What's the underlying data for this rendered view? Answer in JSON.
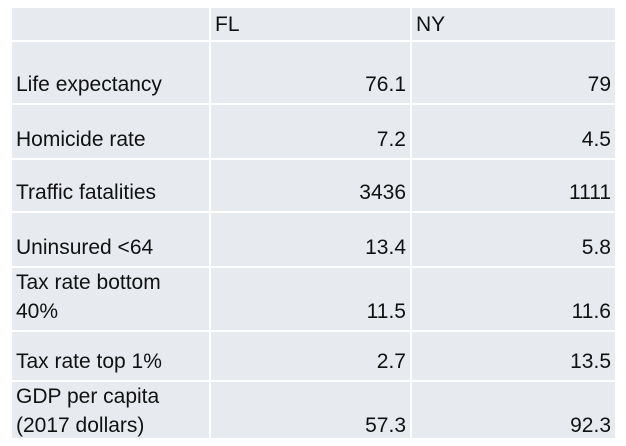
{
  "table": {
    "headers": [
      "",
      "FL",
      "NY"
    ],
    "rows": [
      {
        "label": "Life expectancy",
        "fl": "76.1",
        "ny": "79"
      },
      {
        "label": "Homicide rate",
        "fl": "7.2",
        "ny": "4.5"
      },
      {
        "label": "Traffic fatalities",
        "fl": "3436",
        "ny": "1111"
      },
      {
        "label": "Uninsured <64",
        "fl": "13.4",
        "ny": "5.8"
      },
      {
        "label": "Tax rate bottom 40%",
        "fl": "11.5",
        "ny": "11.6"
      },
      {
        "label": "Tax rate top 1%",
        "fl": "2.7",
        "ny": "13.5"
      },
      {
        "label": "GDP per capita (2017 dollars)",
        "fl": "57.3",
        "ny": "92.3"
      }
    ]
  },
  "colors": {
    "cell_background": "#e7ebf0",
    "grid_lines": "#ffffff",
    "text": "#111111"
  }
}
